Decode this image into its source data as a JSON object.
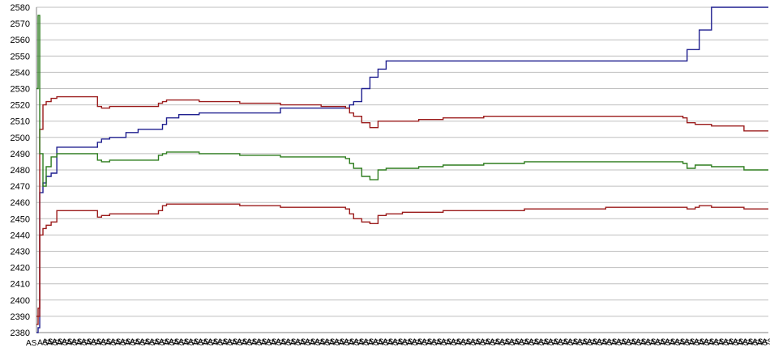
{
  "chart_data": {
    "type": "line",
    "title": "",
    "xlabel": "",
    "ylabel": "",
    "ylim": [
      2380,
      2580
    ],
    "yticks": [
      2380,
      2390,
      2400,
      2410,
      2420,
      2430,
      2440,
      2450,
      2460,
      2470,
      2480,
      2490,
      2500,
      2510,
      2520,
      2530,
      2540,
      2550,
      2560,
      2570,
      2580
    ],
    "xtick_label": "AS",
    "grid": "horizontal",
    "legend": "none",
    "x": [
      0,
      2,
      4,
      8,
      12,
      18,
      25,
      40,
      70,
      75,
      80,
      90,
      100,
      110,
      125,
      150,
      155,
      160,
      175,
      200,
      250,
      300,
      350,
      380,
      385,
      390,
      400,
      410,
      420,
      430,
      450,
      470,
      500,
      550,
      600,
      700,
      790,
      795,
      800,
      810,
      815,
      830,
      870,
      900
    ],
    "series": [
      {
        "color": "#1f1f8f",
        "values": [
          2380,
          2383,
          2466,
          2472,
          2476,
          2478,
          2494,
          2494,
          2494,
          2497,
          2499,
          2500,
          2500,
          2503,
          2505,
          2505,
          2508,
          2512,
          2514,
          2515,
          2515,
          2518,
          2518,
          2518,
          2520,
          2522,
          2530,
          2537,
          2542,
          2547,
          2547,
          2547,
          2547,
          2547,
          2547,
          2547,
          2547,
          2547,
          2554,
          2554,
          2566,
          2580,
          2580,
          2580
        ]
      },
      {
        "color": "#9b1b1b",
        "values": [
          2390,
          2395,
          2505,
          2520,
          2522,
          2524,
          2525,
          2525,
          2525,
          2519,
          2518,
          2519,
          2519,
          2519,
          2519,
          2521,
          2522,
          2523,
          2523,
          2522,
          2521,
          2520,
          2519,
          2518,
          2515,
          2513,
          2509,
          2506,
          2510,
          2510,
          2510,
          2511,
          2512,
          2513,
          2513,
          2513,
          2513,
          2512,
          2509,
          2508,
          2508,
          2507,
          2504,
          2504
        ]
      },
      {
        "color": "#2e7d1f",
        "values": [
          2530,
          2575,
          2490,
          2470,
          2482,
          2488,
          2490,
          2490,
          2490,
          2486,
          2485,
          2486,
          2486,
          2486,
          2486,
          2489,
          2490,
          2491,
          2491,
          2490,
          2489,
          2488,
          2488,
          2487,
          2484,
          2481,
          2476,
          2474,
          2480,
          2481,
          2481,
          2482,
          2483,
          2484,
          2485,
          2485,
          2485,
          2484,
          2481,
          2483,
          2483,
          2482,
          2480,
          2480
        ]
      },
      {
        "color": "#9b1b1b",
        "values": [
          2385,
          2390,
          2440,
          2444,
          2446,
          2448,
          2455,
          2455,
          2455,
          2451,
          2452,
          2453,
          2453,
          2453,
          2453,
          2455,
          2458,
          2459,
          2459,
          2459,
          2458,
          2457,
          2457,
          2456,
          2453,
          2450,
          2448,
          2447,
          2452,
          2453,
          2454,
          2454,
          2455,
          2455,
          2456,
          2457,
          2457,
          2457,
          2456,
          2457,
          2458,
          2457,
          2456,
          2456
        ]
      }
    ]
  }
}
